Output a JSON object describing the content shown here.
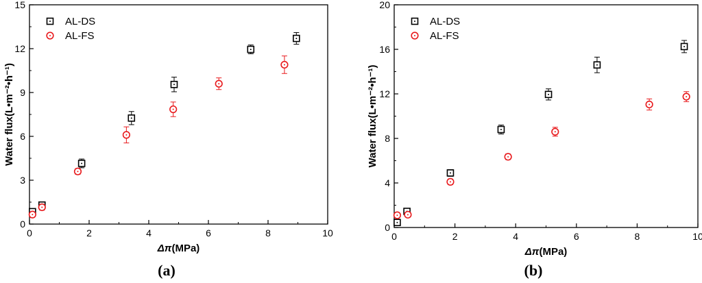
{
  "chart_data": [
    {
      "type": "scatter",
      "panel_label": "(a)",
      "xlabel_symbol": "Δπ",
      "xlabel_unit": "(MPa)",
      "ylabel": "Water flux(L•m⁻²•h⁻¹)",
      "xlim": [
        0,
        10
      ],
      "ylim": [
        0,
        15
      ],
      "xticks": [
        "0",
        "2",
        "4",
        "6",
        "8",
        "10"
      ],
      "yticks": [
        "0",
        "3",
        "6",
        "9",
        "12",
        "15"
      ],
      "legend_position": "top-left",
      "series": [
        {
          "name": "AL-DS",
          "marker": "square",
          "color": "#000000",
          "x": [
            0.1,
            0.42,
            1.75,
            3.42,
            4.85,
            7.42,
            8.95
          ],
          "y": [
            0.85,
            1.3,
            4.15,
            7.25,
            9.55,
            11.95,
            12.7
          ],
          "err": [
            0.15,
            0.15,
            0.3,
            0.45,
            0.5,
            0.3,
            0.4
          ]
        },
        {
          "name": "AL-FS",
          "marker": "circle",
          "color": "#e8191c",
          "x": [
            0.1,
            0.42,
            1.62,
            3.25,
            4.82,
            6.35,
            8.55
          ],
          "y": [
            0.65,
            1.15,
            3.6,
            6.1,
            7.85,
            9.6,
            10.9
          ],
          "err": [
            0.15,
            0.2,
            0.2,
            0.55,
            0.5,
            0.4,
            0.6
          ]
        }
      ]
    },
    {
      "type": "scatter",
      "panel_label": "(b)",
      "xlabel_symbol": "Δπ",
      "xlabel_unit": "(MPa)",
      "ylabel": "Water flux(L•m⁻²•h⁻¹)",
      "xlim": [
        0,
        10
      ],
      "ylim": [
        0,
        20
      ],
      "xticks": [
        "0",
        "2",
        "4",
        "6",
        "8",
        "10"
      ],
      "yticks": [
        "0",
        "4",
        "8",
        "12",
        "16",
        "20"
      ],
      "legend_position": "top-left",
      "series": [
        {
          "name": "AL-DS",
          "marker": "square",
          "color": "#000000",
          "x": [
            0.1,
            0.42,
            1.85,
            3.52,
            5.08,
            6.68,
            9.55
          ],
          "y": [
            0.45,
            1.45,
            4.9,
            8.8,
            11.95,
            14.6,
            16.25
          ],
          "err": [
            0.2,
            0.2,
            0.3,
            0.4,
            0.5,
            0.7,
            0.55
          ]
        },
        {
          "name": "AL-FS",
          "marker": "circle",
          "color": "#e8191c",
          "x": [
            0.1,
            0.45,
            1.85,
            3.75,
            5.3,
            8.4,
            9.62
          ],
          "y": [
            1.1,
            1.15,
            4.1,
            6.35,
            8.6,
            11.05,
            11.75
          ],
          "err": [
            0.2,
            0.2,
            0.25,
            0.25,
            0.4,
            0.5,
            0.45
          ]
        }
      ]
    }
  ]
}
